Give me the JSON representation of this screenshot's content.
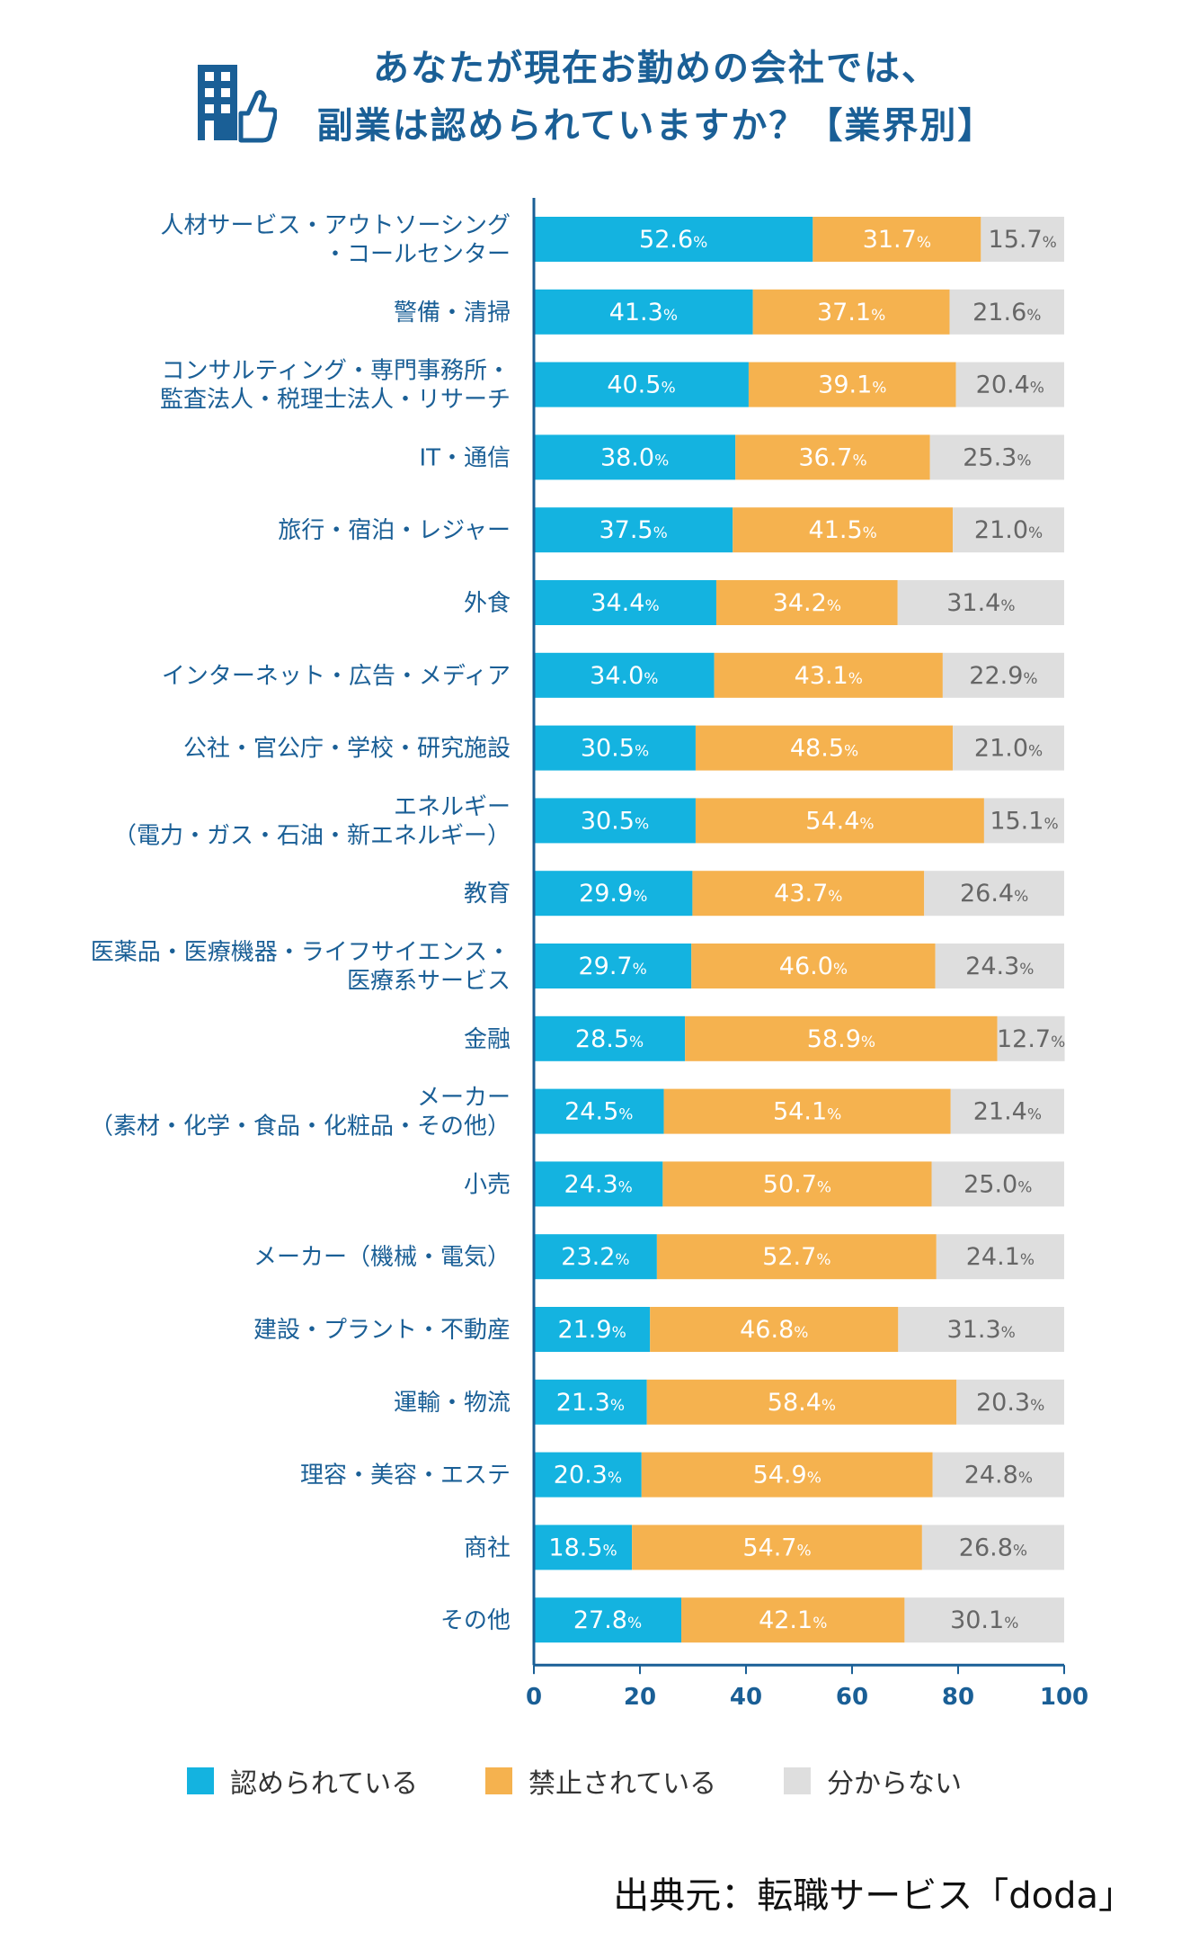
{
  "header": {
    "title_line1": "あなたが現在お勤めの会社では、",
    "title_line2": "副業は認められていますか？【業界別】",
    "icon": "building-thumbs-up-icon"
  },
  "colors": {
    "allowed": "#14b3e0",
    "prohibited": "#f5b24f",
    "unknown": "#dedede",
    "title": "#1a5f96",
    "axis": "#1a5f96",
    "label": "#1a5f96"
  },
  "chart_data": {
    "type": "bar",
    "orientation": "horizontal-stacked",
    "categories": [
      [
        "人材サービス・アウトソーシング",
        "・コールセンター"
      ],
      [
        "警備・清掃"
      ],
      [
        "コンサルティング・専門事務所・",
        "監査法人・税理士法人・リサーチ"
      ],
      [
        "IT・通信"
      ],
      [
        "旅行・宿泊・レジャー"
      ],
      [
        "外食"
      ],
      [
        "インターネット・広告・メディア"
      ],
      [
        "公社・官公庁・学校・研究施設"
      ],
      [
        "エネルギー",
        "（電力・ガス・石油・新エネルギー）"
      ],
      [
        "教育"
      ],
      [
        "医薬品・医療機器・ライフサイエンス・",
        "医療系サービス"
      ],
      [
        "金融"
      ],
      [
        "メーカー",
        "（素材・化学・食品・化粧品・その他）"
      ],
      [
        "小売"
      ],
      [
        "メーカー（機械・電気）"
      ],
      [
        "建設・プラント・不動産"
      ],
      [
        "運輸・物流"
      ],
      [
        "理容・美容・エステ"
      ],
      [
        "商社"
      ],
      [
        "その他"
      ]
    ],
    "series": [
      {
        "name": "認められている",
        "values": [
          52.6,
          41.3,
          40.5,
          38.0,
          37.5,
          34.4,
          34.0,
          30.5,
          30.5,
          29.9,
          29.7,
          28.5,
          24.5,
          24.3,
          23.2,
          21.9,
          21.3,
          20.3,
          18.5,
          27.8
        ]
      },
      {
        "name": "禁止されている",
        "values": [
          31.7,
          37.1,
          39.1,
          36.7,
          41.5,
          34.2,
          43.1,
          48.5,
          54.4,
          43.7,
          46.0,
          58.9,
          54.1,
          50.7,
          52.7,
          46.8,
          58.4,
          54.9,
          54.7,
          42.1
        ]
      },
      {
        "name": "分からない",
        "values": [
          15.7,
          21.6,
          20.4,
          25.3,
          21.0,
          31.4,
          22.9,
          21.0,
          15.1,
          26.4,
          24.3,
          12.7,
          21.4,
          25.0,
          24.1,
          31.3,
          20.3,
          24.8,
          26.8,
          30.1
        ]
      }
    ],
    "value_suffix": "%",
    "xlim": [
      0,
      100
    ],
    "xticks": [
      "0",
      "20",
      "40",
      "60",
      "80",
      "100"
    ],
    "legend_position": "bottom"
  },
  "source": "出典元：転職サービス「doda」"
}
